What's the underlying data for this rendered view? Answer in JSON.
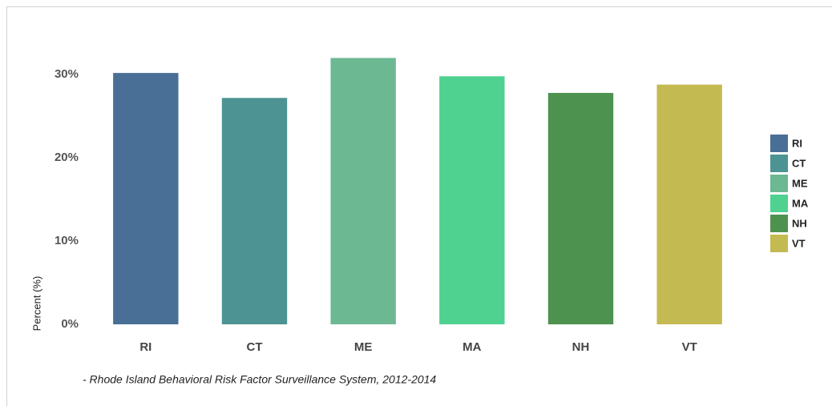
{
  "chart_data": {
    "type": "bar",
    "categories": [
      "RI",
      "CT",
      "ME",
      "MA",
      "NH",
      "VT"
    ],
    "values": [
      30.2,
      27.2,
      32.0,
      29.8,
      27.8,
      28.8
    ],
    "colors": [
      "#4a6f96",
      "#4e9393",
      "#6cb893",
      "#4fd18f",
      "#4d924f",
      "#c4ba52"
    ],
    "ylim": [
      0,
      33
    ],
    "yticks": [
      {
        "value": 0,
        "label": "0%"
      },
      {
        "value": 10,
        "label": "10%"
      },
      {
        "value": 20,
        "label": "20%"
      },
      {
        "value": 30,
        "label": "30%"
      }
    ],
    "ylabel": "Percent (%)",
    "caption": "- Rhode Island Behavioral Risk Factor Surveillance System, 2012-2014",
    "legend": "right"
  }
}
